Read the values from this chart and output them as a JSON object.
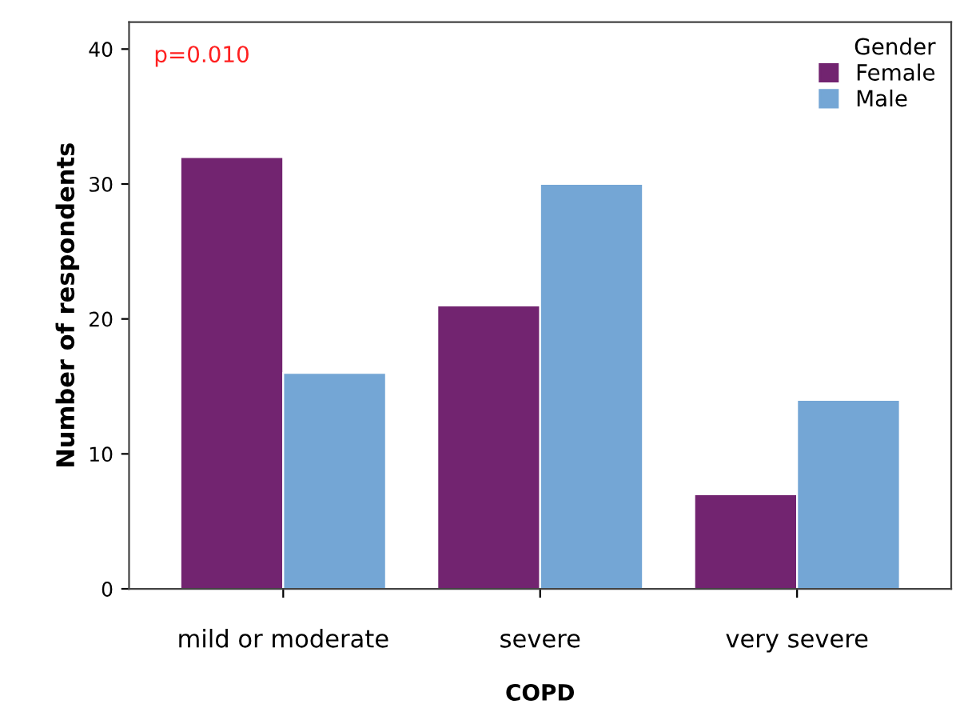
{
  "chart_data": {
    "type": "bar",
    "xlabel": "COPD",
    "ylabel": "Number of respondents",
    "legend_title": "Gender",
    "categories": [
      "mild or moderate",
      "severe",
      "very severe"
    ],
    "series": [
      {
        "name": "Female",
        "color": "#722470",
        "values": [
          32,
          21,
          7
        ]
      },
      {
        "name": "Male",
        "color": "#74a6d5",
        "values": [
          16,
          30,
          14
        ]
      }
    ],
    "ylim": [
      0,
      42
    ],
    "yticks": [
      0,
      10,
      20,
      30,
      40
    ],
    "grid": false,
    "legend": "top right",
    "annotations": [
      "p=0.010"
    ]
  }
}
